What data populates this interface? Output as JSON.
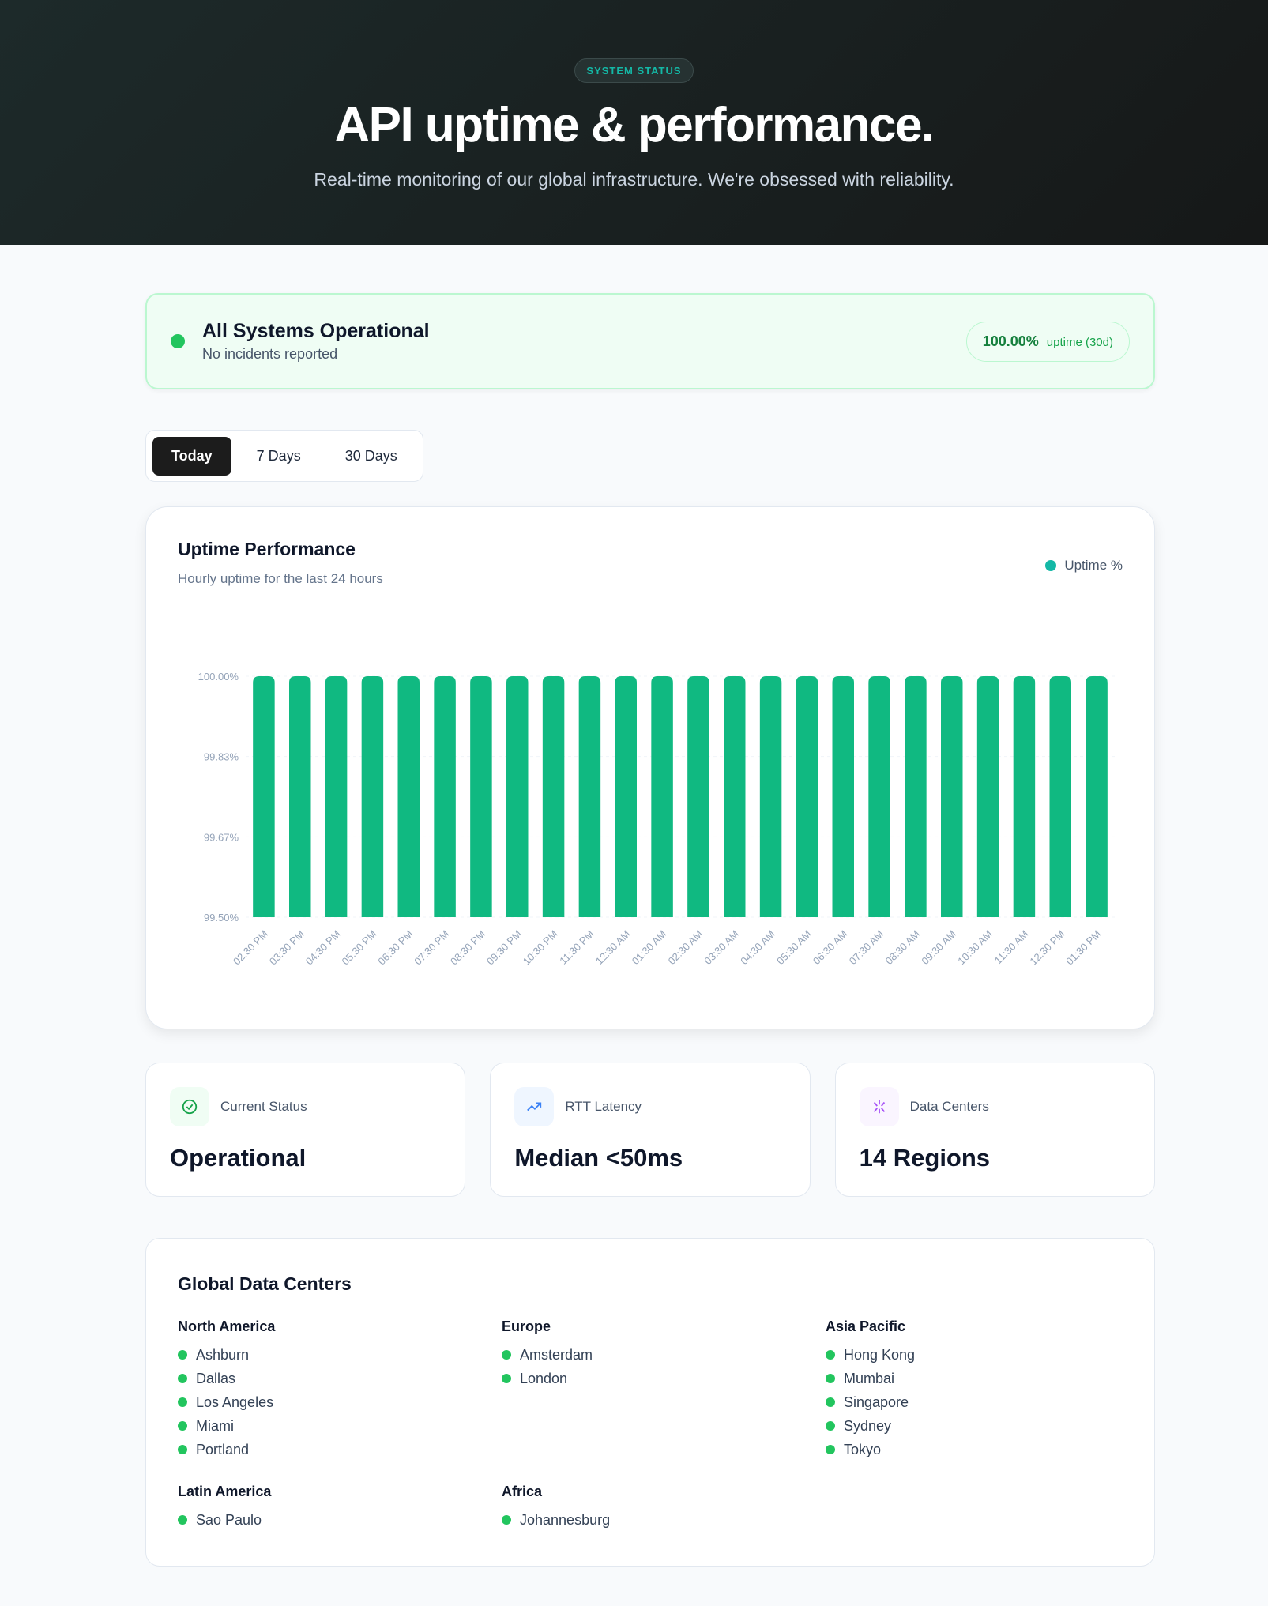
{
  "hero": {
    "badge": "SYSTEM STATUS",
    "title": "API uptime & performance.",
    "subtitle": "Real-time monitoring of our global infrastructure. We're obsessed with reliability."
  },
  "status": {
    "title": "All Systems Operational",
    "subtitle": "No incidents reported",
    "uptime_value": "100.00%",
    "uptime_label": "uptime (30d)",
    "color": "#22c55e"
  },
  "tabs": [
    {
      "label": "Today",
      "active": true
    },
    {
      "label": "7 Days"
    },
    {
      "label": "30 Days"
    }
  ],
  "chart_card": {
    "title": "Uptime Performance",
    "subtitle": "Hourly uptime for the last 24 hours",
    "legend": "Uptime %"
  },
  "chart_data": {
    "type": "bar",
    "categories": [
      "02:30 PM",
      "03:30 PM",
      "04:30 PM",
      "05:30 PM",
      "06:30 PM",
      "07:30 PM",
      "08:30 PM",
      "09:30 PM",
      "10:30 PM",
      "11:30 PM",
      "12:30 AM",
      "01:30 AM",
      "02:30 AM",
      "03:30 AM",
      "04:30 AM",
      "05:30 AM",
      "06:30 AM",
      "07:30 AM",
      "08:30 AM",
      "09:30 AM",
      "10:30 AM",
      "11:30 AM",
      "12:30 PM",
      "01:30 PM"
    ],
    "series": [
      {
        "name": "Uptime %",
        "values": [
          100,
          100,
          100,
          100,
          100,
          100,
          100,
          100,
          100,
          100,
          100,
          100,
          100,
          100,
          100,
          100,
          100,
          100,
          100,
          100,
          100,
          100,
          100,
          100
        ]
      }
    ],
    "yticks": [
      "100.00%",
      "99.83%",
      "99.67%",
      "99.50%"
    ],
    "ylim": [
      99.5,
      100
    ],
    "bar_color": "#10b981",
    "grid": true,
    "legend_placement": "top-right"
  },
  "stats": [
    {
      "icon": "check-circle-icon",
      "label": "Current Status",
      "value": "Operational"
    },
    {
      "icon": "trending-up-icon",
      "label": "RTT Latency",
      "value": "Median <50ms"
    },
    {
      "icon": "network-icon",
      "label": "Data Centers",
      "value": "14 Regions"
    }
  ],
  "datacenters": {
    "title": "Global Data Centers",
    "regions": [
      {
        "name": "North America",
        "cities": [
          "Ashburn",
          "Dallas",
          "Los Angeles",
          "Miami",
          "Portland"
        ]
      },
      {
        "name": "Europe",
        "cities": [
          "Amsterdam",
          "London"
        ]
      },
      {
        "name": "Asia Pacific",
        "cities": [
          "Hong Kong",
          "Mumbai",
          "Singapore",
          "Sydney",
          "Tokyo"
        ]
      },
      {
        "name": "Latin America",
        "cities": [
          "Sao Paulo"
        ]
      },
      {
        "name": "Africa",
        "cities": [
          "Johannesburg"
        ]
      }
    ]
  }
}
